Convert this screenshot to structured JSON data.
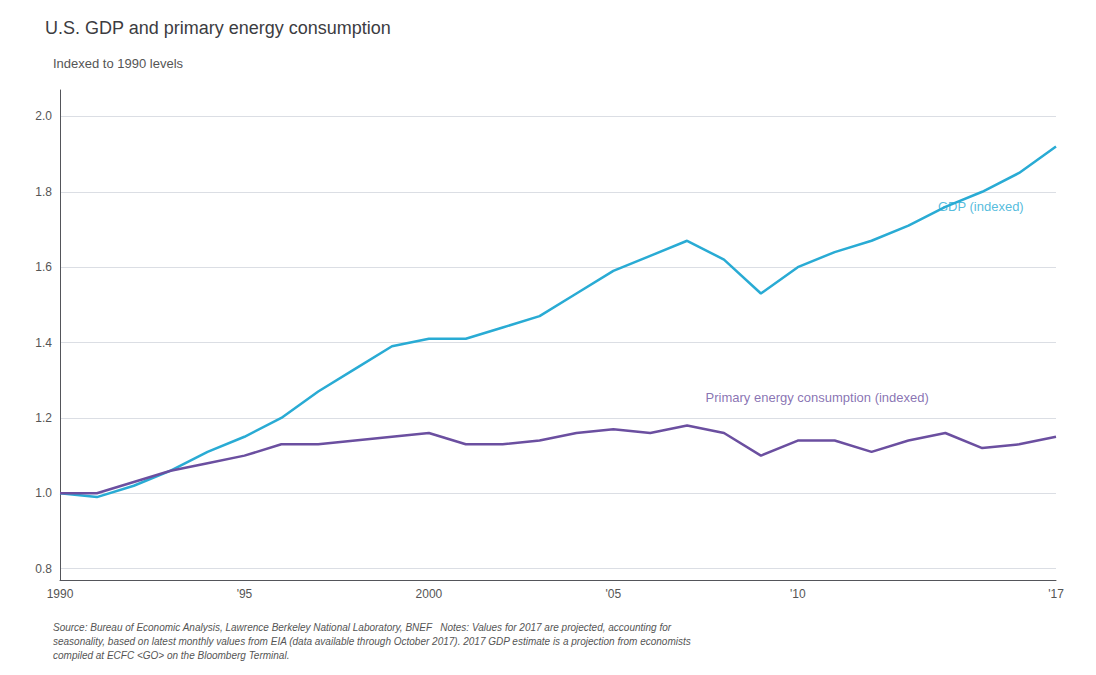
{
  "chart_data": {
    "type": "line",
    "title": "U.S. GDP and primary energy consumption",
    "subtitle": "Indexed to 1990 levels",
    "source": "Source: Bureau of Economic Analysis, Lawrence Berkeley National Laboratory, BNEF   Notes: Values for 2017 are projected, accounting for\nseasonality, based on latest monthly values from EIA (data available through October 2017). 2017 GDP estimate is a projection from economists\ncompiled at ECFC <GO> on the Bloomberg Terminal.",
    "x": [
      1990,
      1991,
      1992,
      1993,
      1994,
      1995,
      1996,
      1997,
      1998,
      1999,
      2000,
      2001,
      2002,
      2003,
      2004,
      2005,
      2006,
      2007,
      2008,
      2009,
      2010,
      2011,
      2012,
      2013,
      2014,
      2015,
      2016,
      2017
    ],
    "series": [
      {
        "name": "GDP (indexed)",
        "color": "#29ABD4",
        "values": [
          1.0,
          0.99,
          1.02,
          1.06,
          1.11,
          1.15,
          1.2,
          1.27,
          1.33,
          1.39,
          1.41,
          1.41,
          1.44,
          1.47,
          1.53,
          1.59,
          1.63,
          1.67,
          1.62,
          1.53,
          1.6,
          1.64,
          1.67,
          1.71,
          1.76,
          1.8,
          1.85,
          1.92
        ]
      },
      {
        "name": "Primary energy consumption (indexed)",
        "color": "#6B4FA0",
        "values": [
          1.0,
          1.0,
          1.03,
          1.06,
          1.08,
          1.1,
          1.13,
          1.13,
          1.14,
          1.15,
          1.16,
          1.13,
          1.13,
          1.14,
          1.16,
          1.17,
          1.16,
          1.18,
          1.16,
          1.1,
          1.14,
          1.14,
          1.11,
          1.14,
          1.16,
          1.12,
          1.13,
          1.15
        ]
      }
    ],
    "annotations": [
      {
        "text": "GDP (indexed)",
        "x": 2013.8,
        "y": 1.76
      },
      {
        "text": "Primary energy consumption (indexed)",
        "x": 2007.5,
        "y": 1.255
      }
    ],
    "xlim": [
      1990,
      2017
    ],
    "xticks": [
      1990,
      {
        "value": 1995,
        "label": "'95"
      },
      2000,
      {
        "value": 2005,
        "label": "'05"
      },
      {
        "value": 2010,
        "label": "'10"
      },
      {
        "value": 2017,
        "label": "'17"
      }
    ],
    "ylim": [
      0.77,
      2.07
    ],
    "yticks": [
      0.8,
      {
        "value": 1,
        "label": "1.0"
      },
      1.2,
      1.4,
      1.6,
      1.8,
      {
        "value": 2,
        "label": "2.0"
      }
    ],
    "grid": true
  }
}
